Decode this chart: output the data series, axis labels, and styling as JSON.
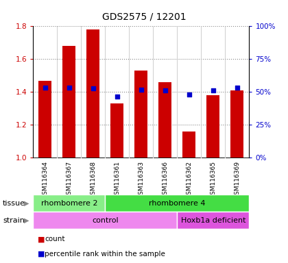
{
  "title": "GDS2575 / 12201",
  "samples": [
    "GSM116364",
    "GSM116367",
    "GSM116368",
    "GSM116361",
    "GSM116363",
    "GSM116366",
    "GSM116362",
    "GSM116365",
    "GSM116369"
  ],
  "counts": [
    1.47,
    1.68,
    1.78,
    1.33,
    1.53,
    1.46,
    1.16,
    1.38,
    1.41
  ],
  "percentile_ranks": [
    53.5,
    53.5,
    53.0,
    46.5,
    52.0,
    51.5,
    48.0,
    51.5,
    53.5
  ],
  "bar_color": "#cc0000",
  "dot_color": "#0000cc",
  "ylim_left": [
    1.0,
    1.8
  ],
  "ylim_right": [
    0,
    100
  ],
  "yticks_left": [
    1.0,
    1.2,
    1.4,
    1.6,
    1.8
  ],
  "yticks_right": [
    0,
    25,
    50,
    75,
    100
  ],
  "ytick_labels_right": [
    "0%",
    "25%",
    "50%",
    "75%",
    "100%"
  ],
  "tissue_groups": [
    {
      "label": "rhombomere 2",
      "start": 0,
      "end": 3,
      "color": "#88ee88"
    },
    {
      "label": "rhombomere 4",
      "start": 3,
      "end": 9,
      "color": "#44dd44"
    }
  ],
  "strain_groups": [
    {
      "label": "control",
      "start": 0,
      "end": 6,
      "color": "#ee88ee"
    },
    {
      "label": "Hoxb1a deficient",
      "start": 6,
      "end": 9,
      "color": "#dd55dd"
    }
  ],
  "grid_color": "#888888",
  "sample_bg_color": "#cccccc",
  "plot_bg": "#ffffff",
  "tissue_label": "tissue",
  "strain_label": "strain",
  "legend_count": "count",
  "legend_pct": "percentile rank within the sample",
  "title_fontsize": 10,
  "tick_fontsize": 7.5,
  "sample_fontsize": 6.5,
  "annotation_fontsize": 8
}
